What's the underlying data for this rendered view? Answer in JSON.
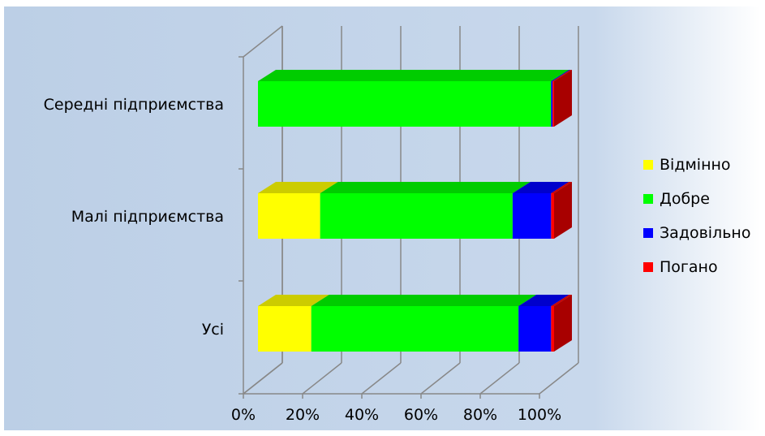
{
  "chart_data": {
    "type": "bar",
    "orientation": "horizontal",
    "stacked": "percent",
    "three_d": true,
    "categories": [
      "Середні підприємства",
      "Малі підприємства",
      "Усі"
    ],
    "series": [
      {
        "name": "Відмінно",
        "color": "#ffff00",
        "values": [
          0,
          21,
          18
        ]
      },
      {
        "name": "Добре",
        "color": "#00ff00",
        "values": [
          99,
          65,
          70
        ]
      },
      {
        "name": "Задовільно",
        "color": "#0000ff",
        "values": [
          0.5,
          13,
          11
        ]
      },
      {
        "name": "Погано",
        "color": "#ff0000",
        "values": [
          0.5,
          1,
          1
        ]
      }
    ],
    "x_ticks": [
      "0%",
      "20%",
      "40%",
      "60%",
      "80%",
      "100%"
    ],
    "xlim": [
      0,
      100
    ],
    "grid": true,
    "legend_position": "right",
    "background": {
      "from": "#bccfe6",
      "to": "#ffffff"
    }
  }
}
